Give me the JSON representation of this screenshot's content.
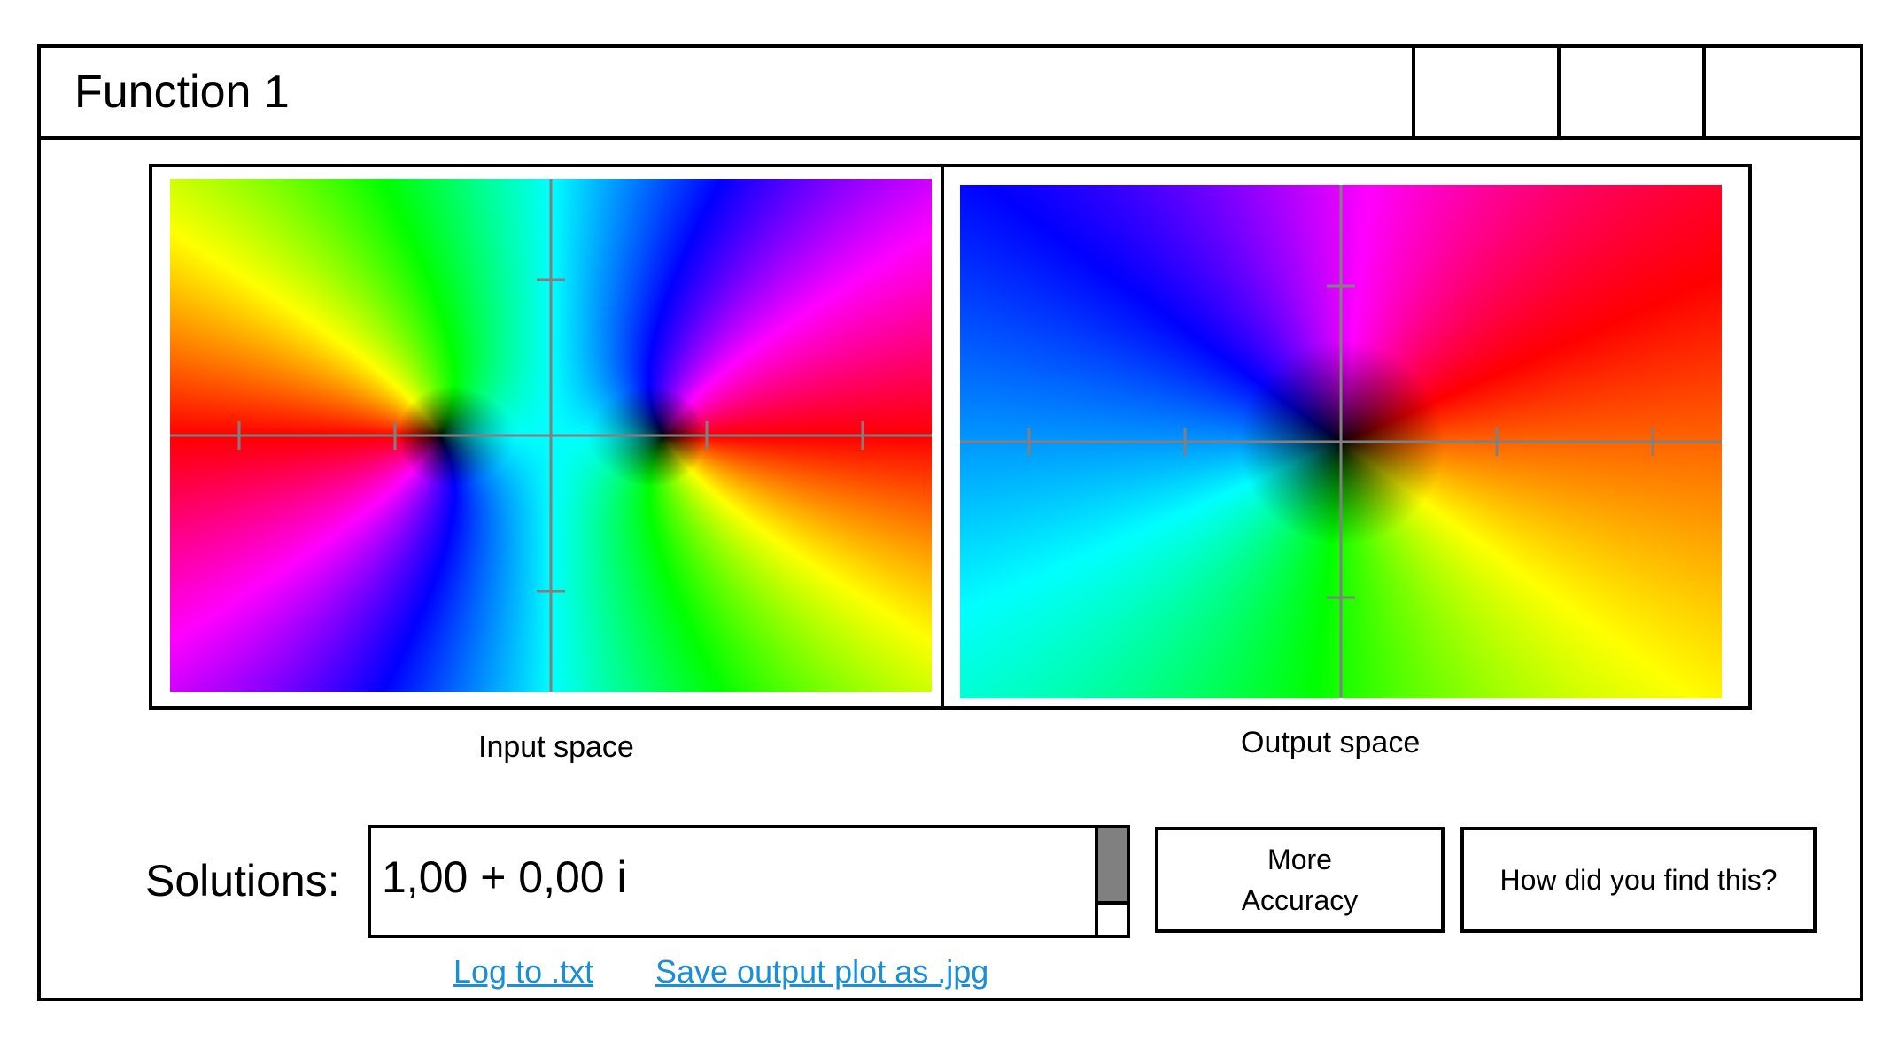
{
  "window": {
    "title": "Function 1"
  },
  "plots": {
    "input_caption": "Input space",
    "output_caption": "Output space"
  },
  "solutions": {
    "label": "Solutions:",
    "value": "1,00 + 0,00 i"
  },
  "buttons": {
    "more_accuracy_line1": "More",
    "more_accuracy_line2": "Accuracy",
    "how_found": "How did you find this?"
  },
  "links": {
    "log_txt": "Log to .txt",
    "save_plot": "Save output plot as .jpg"
  },
  "colors": {
    "axis": "#808080",
    "link": "#1a8fd6",
    "border": "#000000",
    "scroll_thumb": "#808080"
  }
}
